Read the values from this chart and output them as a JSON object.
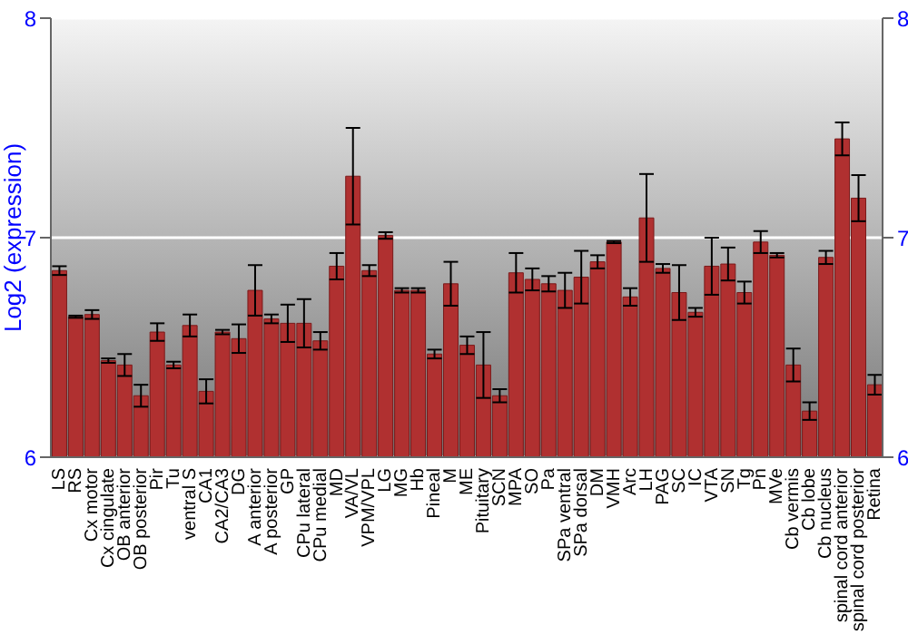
{
  "chart_data": {
    "type": "bar",
    "ylabel": "Log2 (expression)",
    "categories": [
      "LS",
      "RS",
      "Cx motor",
      "Cx cingulate",
      "OB anterior",
      "OB posterior",
      "Pir",
      "Tu",
      "ventral S",
      "CA1",
      "CA2/CA3",
      "DG",
      "A anterior",
      "A posterior",
      "GP",
      "CPu lateral",
      "CPu medial",
      "MD",
      "VA/VL",
      "VPM/VPL",
      "LG",
      "MG",
      "Hb",
      "Pineal",
      "M",
      "ME",
      "Pituitary",
      "SCN",
      "MPA",
      "SO",
      "Pa",
      "SPa ventral",
      "SPa dorsal",
      "DM",
      "VMH",
      "Arc",
      "LH",
      "PAG",
      "SC",
      "IC",
      "VTA",
      "SN",
      "Tg",
      "Pn",
      "MVe",
      "Cb vermis",
      "Cb lobe",
      "Cb nucleus",
      "spinal cord anterior",
      "spinal cord posterior",
      "Retina"
    ],
    "values": [
      6.85,
      6.64,
      6.65,
      6.44,
      6.42,
      6.28,
      6.57,
      6.42,
      6.6,
      6.3,
      6.57,
      6.54,
      6.76,
      6.63,
      6.61,
      6.61,
      6.53,
      6.87,
      7.28,
      6.85,
      7.01,
      6.76,
      6.76,
      6.47,
      6.79,
      6.51,
      6.42,
      6.28,
      6.84,
      6.81,
      6.79,
      6.76,
      6.82,
      6.89,
      6.98,
      6.73,
      7.09,
      6.86,
      6.75,
      6.66,
      6.87,
      6.88,
      6.75,
      6.98,
      6.92,
      6.42,
      6.21,
      6.91,
      7.45,
      7.18,
      6.33
    ],
    "errors": [
      0.02,
      0.005,
      0.02,
      0.01,
      0.05,
      0.05,
      0.04,
      0.015,
      0.05,
      0.055,
      0.01,
      0.065,
      0.115,
      0.02,
      0.085,
      0.11,
      0.04,
      0.06,
      0.22,
      0.025,
      0.015,
      0.01,
      0.01,
      0.02,
      0.1,
      0.04,
      0.15,
      0.03,
      0.09,
      0.05,
      0.035,
      0.08,
      0.12,
      0.03,
      0.005,
      0.04,
      0.2,
      0.02,
      0.125,
      0.02,
      0.13,
      0.075,
      0.05,
      0.05,
      0.01,
      0.075,
      0.04,
      0.03,
      0.075,
      0.105,
      0.045
    ],
    "color": "#b03030",
    "ylim": [
      6,
      8
    ],
    "yticks": [
      6,
      7,
      8
    ],
    "y2lim": [
      6,
      8
    ],
    "y2ticks": [
      6,
      7,
      8
    ],
    "grid": "y",
    "legend": false
  }
}
